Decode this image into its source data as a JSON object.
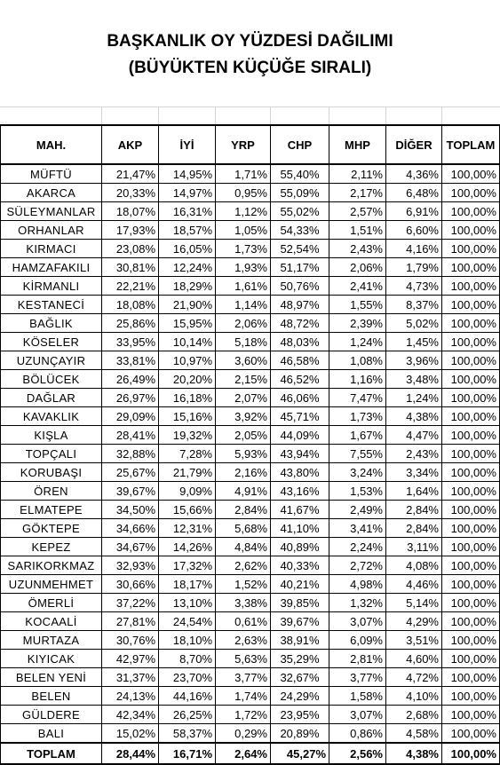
{
  "title_line1": "BAŞKANLIK OY YÜZDESİ DAĞILIMI",
  "title_line2": "(BÜYÜKTEN KÜÇÜĞE SIRALI)",
  "headers": [
    "MAH.",
    "AKP",
    "İYİ",
    "YRP",
    "CHP",
    "MHP",
    "DİĞER",
    "TOPLAM"
  ],
  "rows": [
    [
      "MÜFTÜ",
      "21,47%",
      "14,95%",
      "1,71%",
      "55,40%",
      "2,11%",
      "4,36%",
      "100,00%"
    ],
    [
      "AKARCA",
      "20,33%",
      "14,97%",
      "0,95%",
      "55,09%",
      "2,17%",
      "6,48%",
      "100,00%"
    ],
    [
      "SÜLEYMANLAR",
      "18,07%",
      "16,31%",
      "1,12%",
      "55,02%",
      "2,57%",
      "6,91%",
      "100,00%"
    ],
    [
      "ORHANLAR",
      "17,93%",
      "18,57%",
      "1,05%",
      "54,33%",
      "1,51%",
      "6,60%",
      "100,00%"
    ],
    [
      "KIRMACI",
      "23,08%",
      "16,05%",
      "1,73%",
      "52,54%",
      "2,43%",
      "4,16%",
      "100,00%"
    ],
    [
      "HAMZAFAKILI",
      "30,81%",
      "12,24%",
      "1,93%",
      "51,17%",
      "2,06%",
      "1,79%",
      "100,00%"
    ],
    [
      "KİRMANLI",
      "22,21%",
      "18,29%",
      "1,61%",
      "50,76%",
      "2,41%",
      "4,73%",
      "100,00%"
    ],
    [
      "KESTANECİ",
      "18,08%",
      "21,90%",
      "1,14%",
      "48,97%",
      "1,55%",
      "8,37%",
      "100,00%"
    ],
    [
      "BAĞLIK",
      "25,86%",
      "15,95%",
      "2,06%",
      "48,72%",
      "2,39%",
      "5,02%",
      "100,00%"
    ],
    [
      "KÖSELER",
      "33,95%",
      "10,14%",
      "5,18%",
      "48,03%",
      "1,24%",
      "1,45%",
      "100,00%"
    ],
    [
      "UZUNÇAYIR",
      "33,81%",
      "10,97%",
      "3,60%",
      "46,58%",
      "1,08%",
      "3,96%",
      "100,00%"
    ],
    [
      "BÖLÜCEK",
      "26,49%",
      "20,20%",
      "2,15%",
      "46,52%",
      "1,16%",
      "3,48%",
      "100,00%"
    ],
    [
      "DAĞLAR",
      "26,97%",
      "16,18%",
      "2,07%",
      "46,06%",
      "7,47%",
      "1,24%",
      "100,00%"
    ],
    [
      "KAVAKLIK",
      "29,09%",
      "15,16%",
      "3,92%",
      "45,71%",
      "1,73%",
      "4,38%",
      "100,00%"
    ],
    [
      "KIŞLA",
      "28,41%",
      "19,32%",
      "2,05%",
      "44,09%",
      "1,67%",
      "4,47%",
      "100,00%"
    ],
    [
      "TOPÇALI",
      "32,88%",
      "7,28%",
      "5,93%",
      "43,94%",
      "7,55%",
      "2,43%",
      "100,00%"
    ],
    [
      "KORUBAŞI",
      "25,67%",
      "21,79%",
      "2,16%",
      "43,80%",
      "3,24%",
      "3,34%",
      "100,00%"
    ],
    [
      "ÖREN",
      "39,67%",
      "9,09%",
      "4,91%",
      "43,16%",
      "1,53%",
      "1,64%",
      "100,00%"
    ],
    [
      "ELMATEPE",
      "34,50%",
      "15,66%",
      "2,84%",
      "41,67%",
      "2,49%",
      "2,84%",
      "100,00%"
    ],
    [
      "GÖKTEPE",
      "34,66%",
      "12,31%",
      "5,68%",
      "41,10%",
      "3,41%",
      "2,84%",
      "100,00%"
    ],
    [
      "KEPEZ",
      "34,67%",
      "14,26%",
      "4,84%",
      "40,89%",
      "2,24%",
      "3,11%",
      "100,00%"
    ],
    [
      "SARIKORKMAZ",
      "32,93%",
      "17,32%",
      "2,62%",
      "40,33%",
      "2,72%",
      "4,08%",
      "100,00%"
    ],
    [
      "UZUNMEHMET",
      "30,66%",
      "18,17%",
      "1,52%",
      "40,21%",
      "4,98%",
      "4,46%",
      "100,00%"
    ],
    [
      "ÖMERLİ",
      "37,22%",
      "13,10%",
      "3,38%",
      "39,85%",
      "1,32%",
      "5,14%",
      "100,00%"
    ],
    [
      "KOCAALİ",
      "27,81%",
      "24,54%",
      "0,61%",
      "39,67%",
      "3,07%",
      "4,29%",
      "100,00%"
    ],
    [
      "MURTAZA",
      "30,76%",
      "18,10%",
      "2,63%",
      "38,91%",
      "6,09%",
      "3,51%",
      "100,00%"
    ],
    [
      "KIYICAK",
      "42,97%",
      "8,70%",
      "5,63%",
      "35,29%",
      "2,81%",
      "4,60%",
      "100,00%"
    ],
    [
      "BELEN YENİ",
      "31,37%",
      "23,70%",
      "3,77%",
      "32,67%",
      "3,77%",
      "4,72%",
      "100,00%"
    ],
    [
      "BELEN",
      "24,13%",
      "44,16%",
      "1,74%",
      "24,29%",
      "1,58%",
      "4,10%",
      "100,00%"
    ],
    [
      "GÜLDERE",
      "42,34%",
      "26,25%",
      "1,72%",
      "23,95%",
      "3,07%",
      "2,68%",
      "100,00%"
    ],
    [
      "BALI",
      "15,02%",
      "58,37%",
      "0,29%",
      "20,89%",
      "0,86%",
      "4,58%",
      "100,00%"
    ]
  ],
  "total": [
    "TOPLAM",
    "28,44%",
    "16,71%",
    "2,64%",
    "45,27%",
    "2,56%",
    "4,38%",
    "100,00%"
  ]
}
